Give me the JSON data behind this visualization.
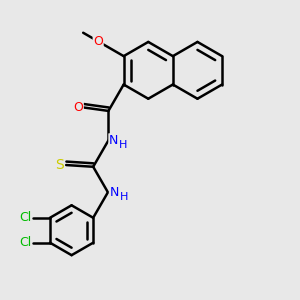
{
  "bg_color": "#e8e8e8",
  "bond_color": "#000000",
  "bond_width": 1.8,
  "atom_colors": {
    "O": "#ff0000",
    "N": "#0000ff",
    "S": "#cccc00",
    "Cl": "#00bb00",
    "C": "#000000"
  },
  "font_size": 9,
  "font_size_h": 8
}
